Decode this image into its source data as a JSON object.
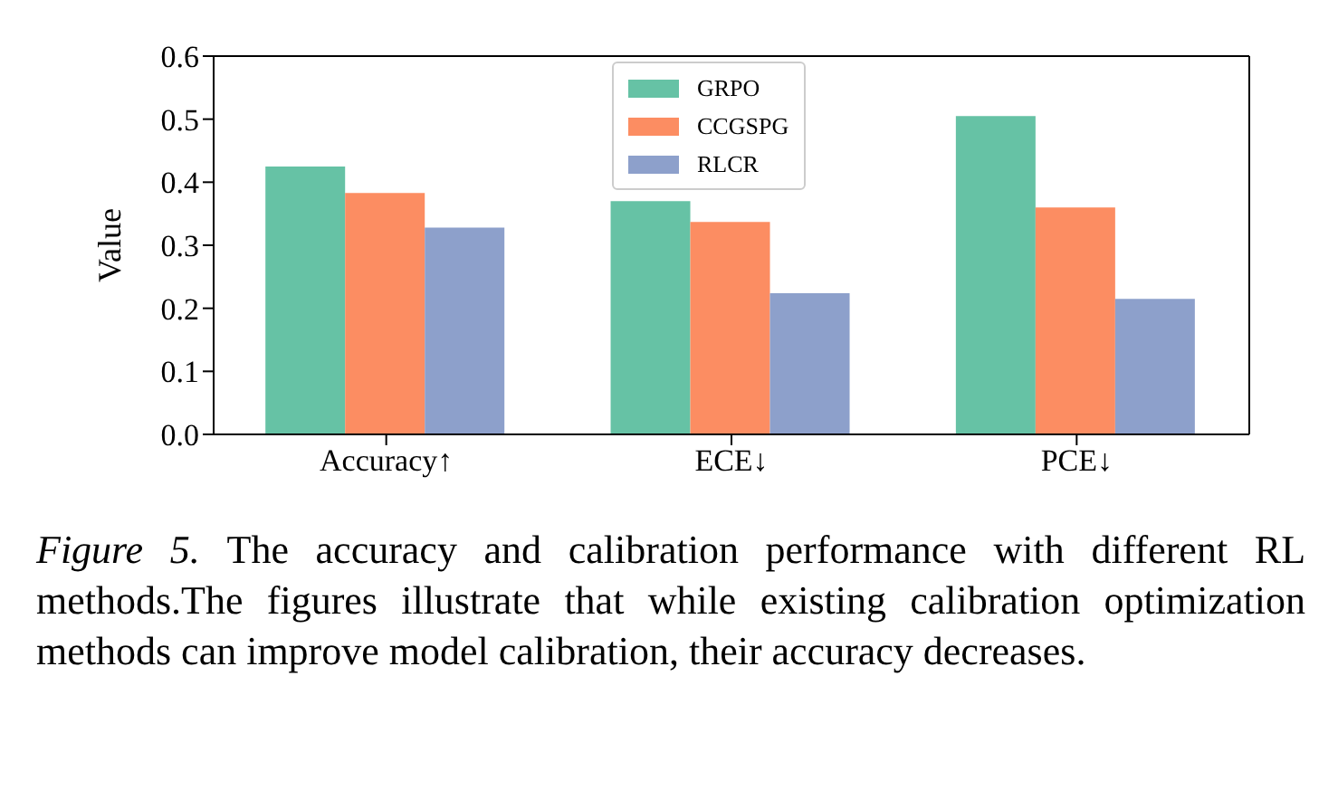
{
  "chart_data": {
    "type": "bar",
    "categories": [
      "Accuracy↑",
      "ECE↓",
      "PCE↓"
    ],
    "ylabel": "Value",
    "ylim": [
      0,
      0.6
    ],
    "yticks": [
      {
        "value": 0,
        "label": "0.0"
      },
      0.1,
      0.2,
      0.3,
      0.4,
      0.5,
      0.6
    ],
    "grid": false,
    "legend": "top",
    "series": [
      {
        "name": "GRPO",
        "color": "#66c2a5",
        "values": [
          0.425,
          0.37,
          0.505
        ]
      },
      {
        "name": "CCGSPG",
        "color": "#fc8d62",
        "values": [
          0.383,
          0.337,
          0.36
        ]
      },
      {
        "name": "RLCR",
        "color": "#8da0cb",
        "values": [
          0.328,
          0.224,
          0.215
        ]
      }
    ],
    "annotations": [
      "Figure 5.",
      "The accuracy and calibration performance with different RL methods.The figures illustrate that while existing calibration optimization methods can improve model calibration, their accuracy decreases."
    ]
  }
}
